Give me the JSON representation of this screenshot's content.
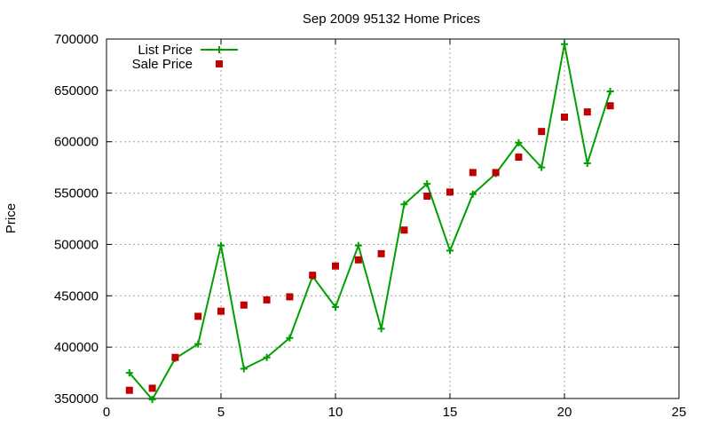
{
  "chart_data": {
    "type": "line",
    "title": "Sep 2009 95132 Home Prices",
    "xlabel": "",
    "ylabel": "Price",
    "xlim": [
      0,
      25
    ],
    "ylim": [
      350000,
      700000
    ],
    "xticks": [
      0,
      5,
      10,
      15,
      20,
      25
    ],
    "yticks": [
      350000,
      400000,
      450000,
      500000,
      550000,
      600000,
      650000,
      700000
    ],
    "grid": true,
    "legend_position": "top-left",
    "x": [
      1,
      2,
      3,
      4,
      5,
      6,
      7,
      8,
      9,
      10,
      11,
      12,
      13,
      14,
      15,
      16,
      17,
      18,
      19,
      20,
      21,
      22
    ],
    "series": [
      {
        "name": "List Price",
        "style": "linespoints",
        "marker": "plus",
        "color": "#00a000",
        "values": [
          375000,
          349000,
          389000,
          403000,
          499000,
          379000,
          390000,
          409000,
          469000,
          439000,
          499000,
          418000,
          539000,
          559000,
          494000,
          549000,
          569000,
          599000,
          575000,
          695000,
          579000,
          649000
        ]
      },
      {
        "name": "Sale Price",
        "style": "points",
        "marker": "square",
        "color": "#c00000",
        "values": [
          358000,
          360000,
          390000,
          430000,
          435000,
          441000,
          446000,
          449000,
          470000,
          479000,
          485000,
          491000,
          514000,
          547000,
          551000,
          570000,
          570000,
          585000,
          610000,
          624000,
          629000,
          635000
        ]
      }
    ]
  }
}
